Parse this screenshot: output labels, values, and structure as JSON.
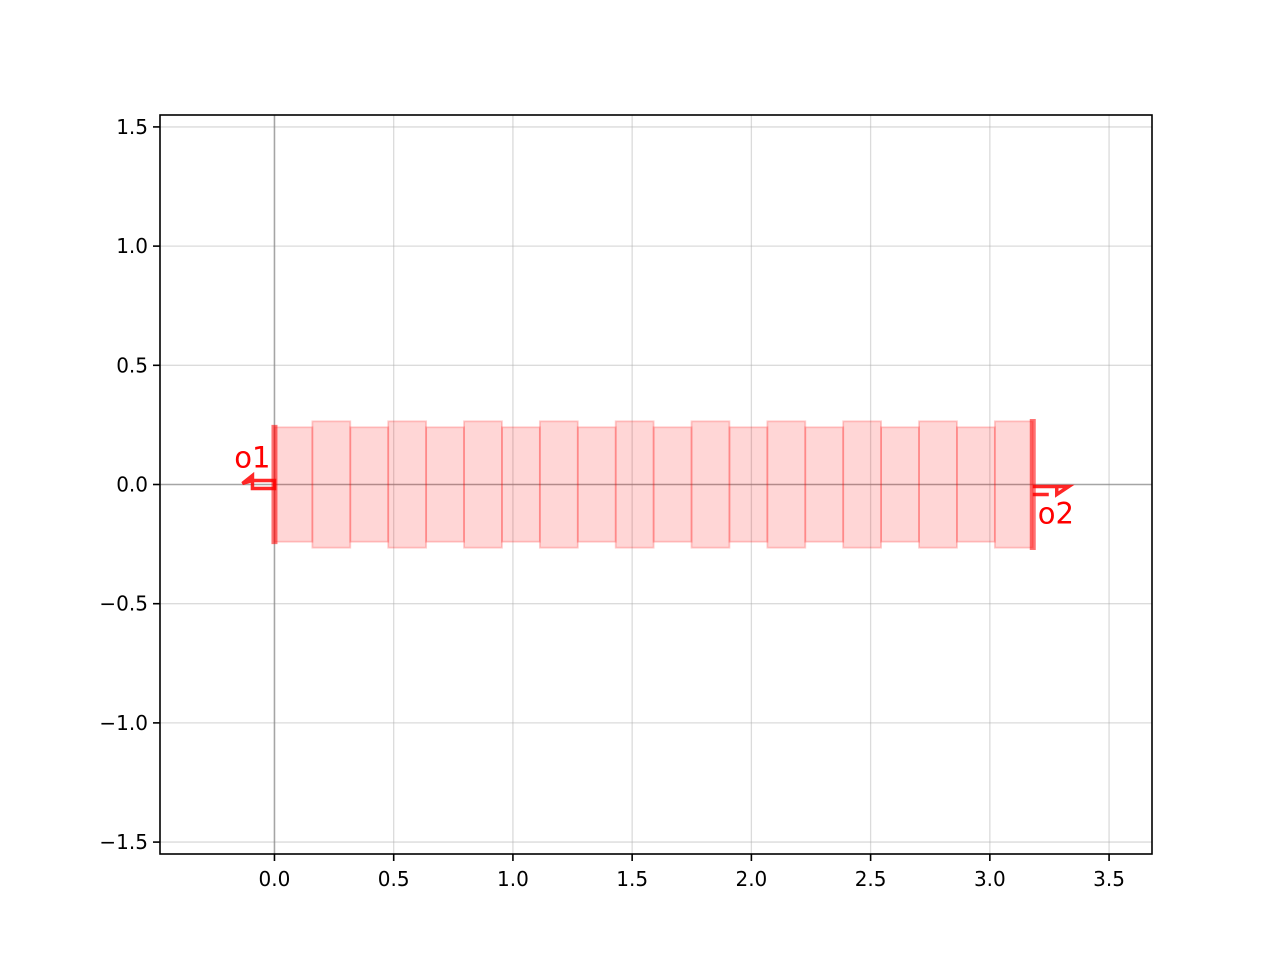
{
  "chart_data": {
    "type": "layout",
    "title": "",
    "xlabel": "",
    "ylabel": "",
    "xlim": [
      -0.48,
      3.68
    ],
    "ylim": [
      -1.55,
      1.55
    ],
    "grid": true,
    "legend": "none",
    "x_ticks": [
      0.0,
      0.5,
      1.0,
      1.5,
      2.0,
      2.5,
      3.0,
      3.5
    ],
    "x_tick_labels": [
      "0.0",
      "0.5",
      "1.0",
      "1.5",
      "2.0",
      "2.5",
      "3.0",
      "3.5"
    ],
    "y_ticks": [
      1.5,
      1.0,
      0.5,
      0.0,
      -0.5,
      -1.0,
      -1.5
    ],
    "y_tick_labels": [
      "1.5",
      "1.0",
      "0.5",
      "0.0",
      "−0.5",
      "−1.0",
      "−1.5"
    ],
    "colors": {
      "fill": "#ff0000",
      "port": "#ff0000",
      "axis_line": "#000000",
      "grid": "#b0b0b0"
    },
    "segments": [
      {
        "x0": 0.0,
        "x1": 0.159,
        "half_width": 0.24
      },
      {
        "x0": 0.159,
        "x1": 0.318,
        "half_width": 0.265
      },
      {
        "x0": 0.318,
        "x1": 0.477,
        "half_width": 0.24
      },
      {
        "x0": 0.477,
        "x1": 0.636,
        "half_width": 0.265
      },
      {
        "x0": 0.636,
        "x1": 0.795,
        "half_width": 0.24
      },
      {
        "x0": 0.795,
        "x1": 0.954,
        "half_width": 0.265
      },
      {
        "x0": 0.954,
        "x1": 1.113,
        "half_width": 0.24
      },
      {
        "x0": 1.113,
        "x1": 1.272,
        "half_width": 0.265
      },
      {
        "x0": 1.272,
        "x1": 1.431,
        "half_width": 0.24
      },
      {
        "x0": 1.431,
        "x1": 1.59,
        "half_width": 0.265
      },
      {
        "x0": 1.59,
        "x1": 1.749,
        "half_width": 0.24
      },
      {
        "x0": 1.749,
        "x1": 1.908,
        "half_width": 0.265
      },
      {
        "x0": 1.908,
        "x1": 2.067,
        "half_width": 0.24
      },
      {
        "x0": 2.067,
        "x1": 2.226,
        "half_width": 0.265
      },
      {
        "x0": 2.226,
        "x1": 2.385,
        "half_width": 0.24
      },
      {
        "x0": 2.385,
        "x1": 2.544,
        "half_width": 0.265
      },
      {
        "x0": 2.544,
        "x1": 2.703,
        "half_width": 0.24
      },
      {
        "x0": 2.703,
        "x1": 2.862,
        "half_width": 0.265
      },
      {
        "x0": 2.862,
        "x1": 3.021,
        "half_width": 0.24
      },
      {
        "x0": 3.021,
        "x1": 3.18,
        "half_width": 0.265
      }
    ],
    "ports": [
      {
        "name": "o1",
        "x": 0.0,
        "y": 0.0,
        "width": 0.5,
        "direction": "left"
      },
      {
        "name": "o2",
        "x": 3.18,
        "y": 0.0,
        "width": 0.55,
        "direction": "right"
      }
    ]
  }
}
